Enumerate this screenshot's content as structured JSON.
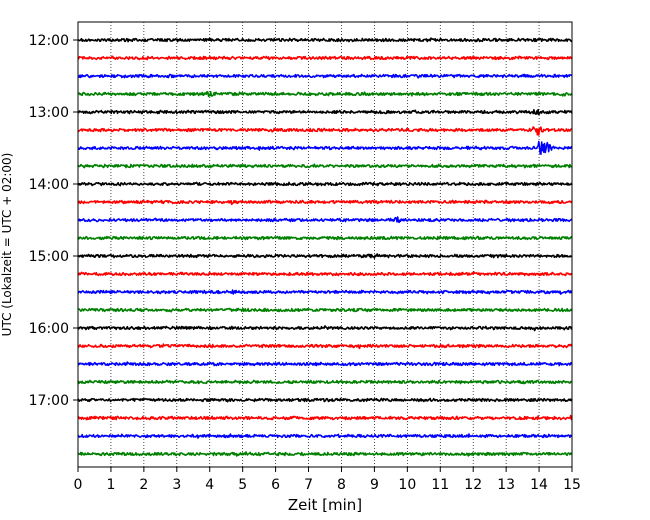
{
  "chart_data": {
    "type": "line",
    "title": "",
    "xlabel": "Zeit  [min]",
    "ylabel": "UTC (Lokalzeit = UTC + 02:00)",
    "xlim": [
      0,
      15
    ],
    "x_ticks": [
      "0",
      "1",
      "2",
      "3",
      "4",
      "5",
      "6",
      "7",
      "8",
      "9",
      "10",
      "11",
      "12",
      "13",
      "14",
      "15"
    ],
    "y_tick_labels": [
      "12:00",
      "13:00",
      "14:00",
      "15:00",
      "16:00",
      "17:00"
    ],
    "trace_start_times": [
      "12:00",
      "12:15",
      "12:30",
      "12:45",
      "13:00",
      "13:15",
      "13:30",
      "13:45",
      "14:00",
      "14:15",
      "14:30",
      "14:45",
      "15:00",
      "15:15",
      "15:30",
      "15:45",
      "16:00",
      "16:15",
      "16:30",
      "16:45",
      "17:00",
      "17:15",
      "17:30",
      "17:45"
    ],
    "trace_colors": [
      "#000000",
      "#ff0000",
      "#0000ff",
      "#008000"
    ],
    "grid": "vertical dotted",
    "events": [
      {
        "trace": "13:00",
        "minute": 13.9,
        "amplitude": 0.55
      },
      {
        "trace": "13:15",
        "minute": 13.95,
        "amplitude": 1.6
      },
      {
        "trace": "13:30",
        "minute": 14.0,
        "amplitude": 2.0
      },
      {
        "trace": "13:30",
        "minute": 14.25,
        "amplitude": 1.4
      },
      {
        "trace": "14:30",
        "minute": 9.7,
        "amplitude": 0.6
      },
      {
        "trace": "15:00",
        "minute": 9.0,
        "amplitude": 0.45
      },
      {
        "trace": "15:30",
        "minute": 4.7,
        "amplitude": 0.6
      },
      {
        "trace": "12:45",
        "minute": 4.0,
        "amplitude": 0.5
      }
    ]
  }
}
